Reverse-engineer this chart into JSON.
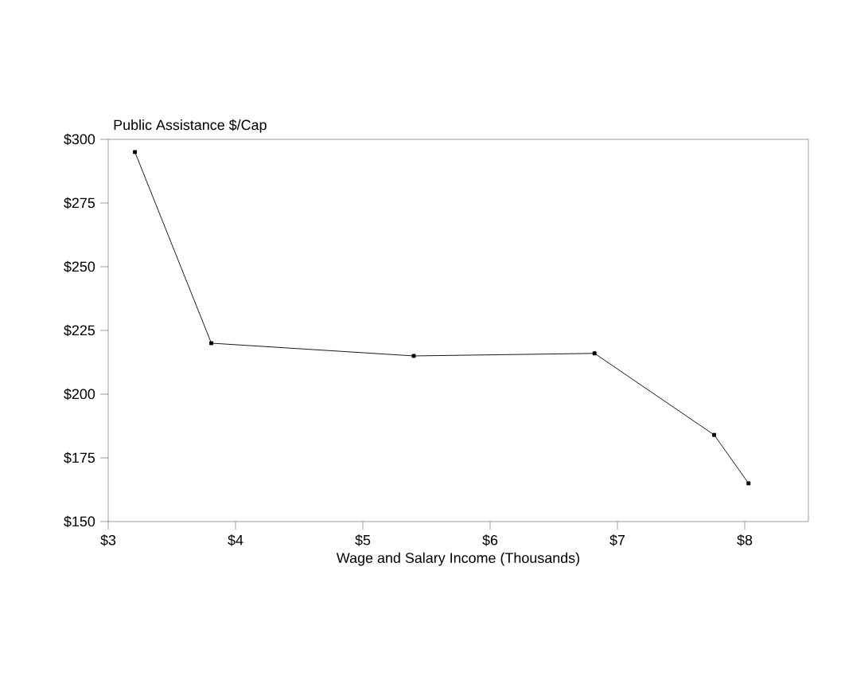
{
  "chart_data": {
    "type": "line",
    "xlabel": "Wage and Salary Income (Thousands)",
    "ylabel": "Public Assistance $/Cap",
    "x": [
      3.21,
      3.81,
      5.4,
      6.82,
      7.76,
      8.03
    ],
    "values": [
      295,
      220,
      215,
      216,
      184,
      165
    ],
    "color": "#000000",
    "marker": "square",
    "line_style": "solid",
    "grid": false,
    "xlim": [
      3,
      8.5
    ],
    "ylim": [
      150,
      300
    ],
    "xticks": [
      {
        "value": 3,
        "label": "$3"
      },
      {
        "value": 4,
        "label": "$4"
      },
      {
        "value": 5,
        "label": "$5"
      },
      {
        "value": 6,
        "label": "$6"
      },
      {
        "value": 7,
        "label": "$7"
      },
      {
        "value": 8,
        "label": "$8"
      }
    ],
    "yticks": [
      {
        "value": 150,
        "label": "$150"
      },
      {
        "value": 175,
        "label": "$175"
      },
      {
        "value": 200,
        "label": "$200"
      },
      {
        "value": 225,
        "label": "$225"
      },
      {
        "value": 250,
        "label": "$250"
      },
      {
        "value": 275,
        "label": "$275"
      },
      {
        "value": 300,
        "label": "$300"
      }
    ]
  }
}
